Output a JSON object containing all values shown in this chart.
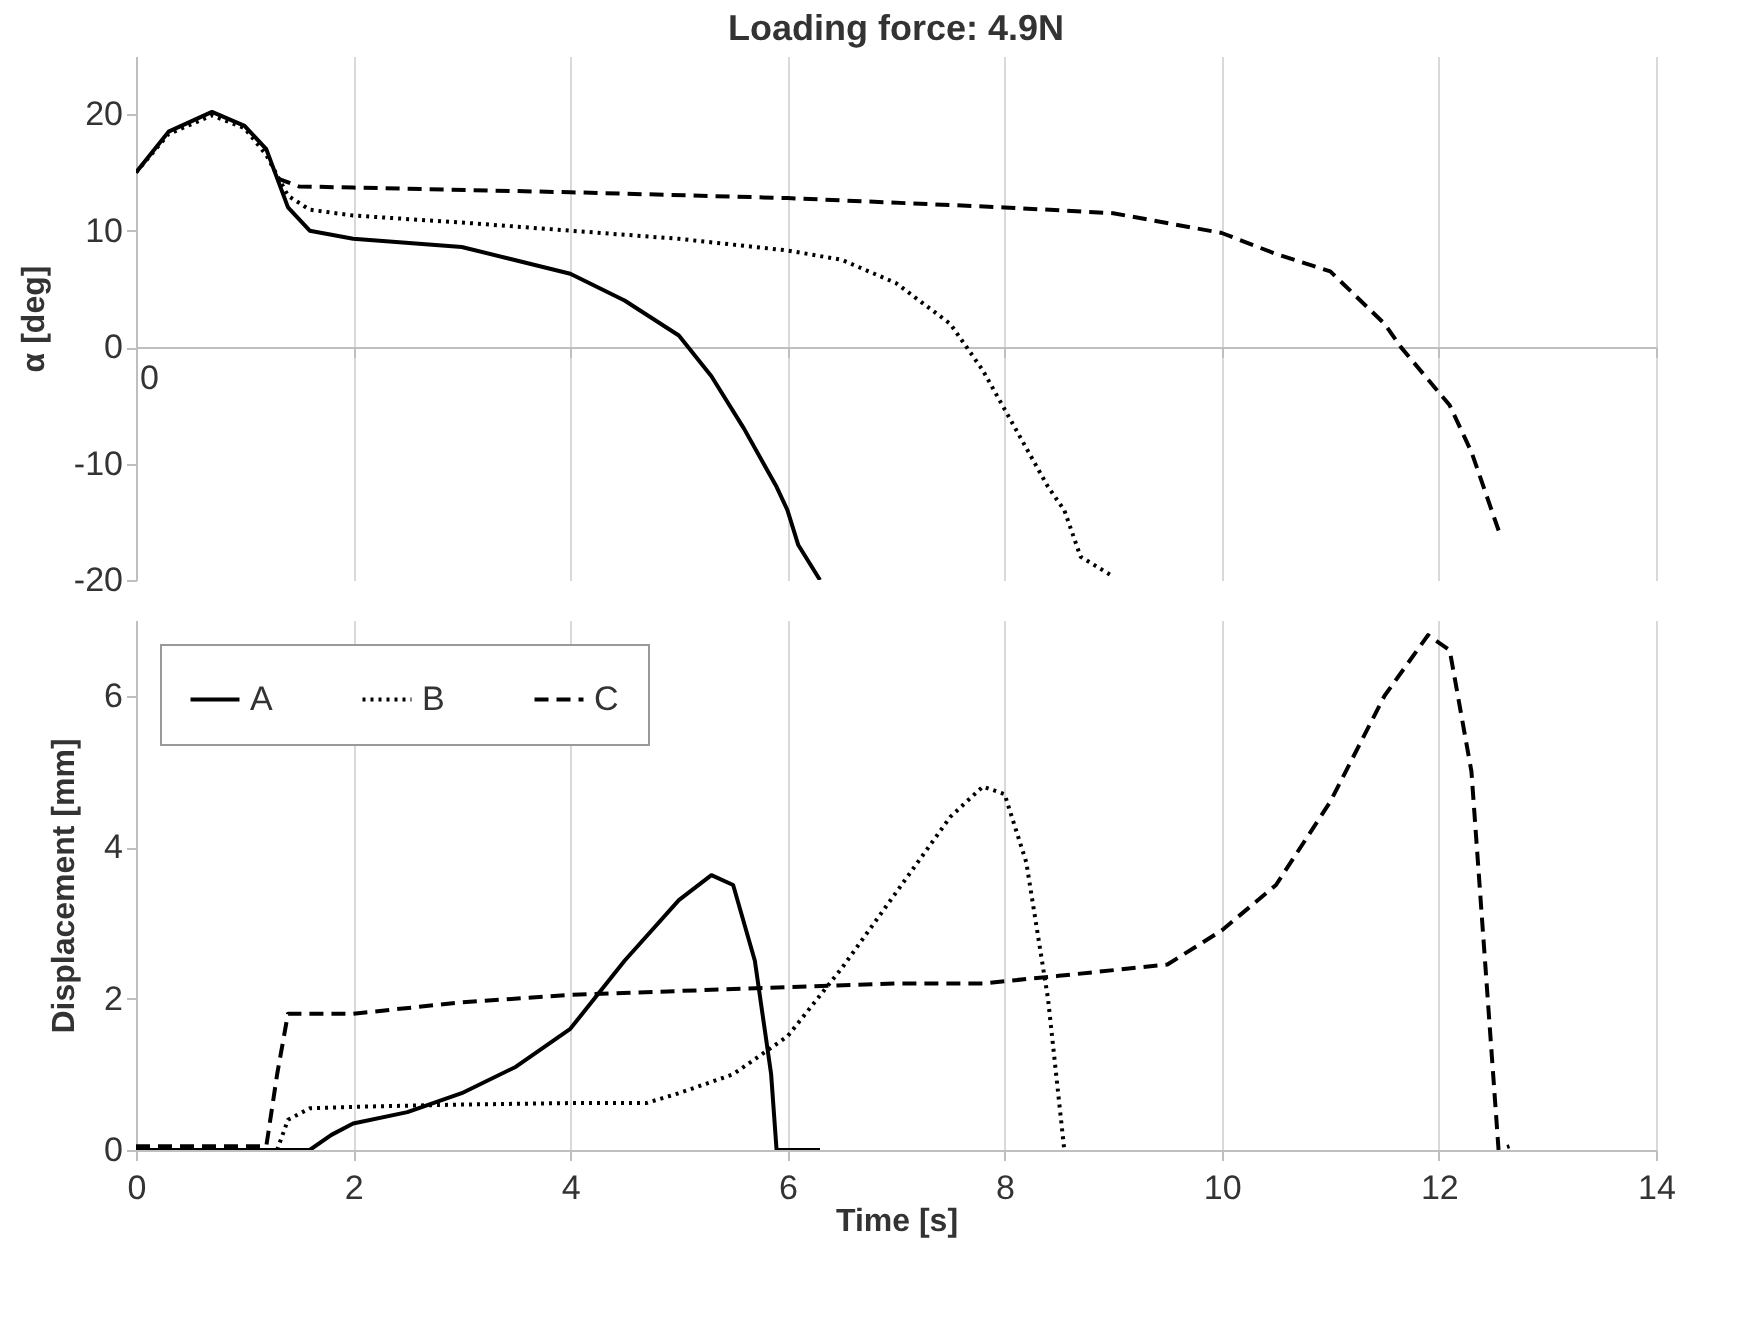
{
  "chart_data": [
    {
      "type": "line",
      "title": "Loading force: 4.9N",
      "ylabel": "α [deg]",
      "xlim": [
        0,
        14
      ],
      "xticks": [
        0,
        2,
        4,
        6,
        8,
        10,
        12,
        14
      ],
      "tick_labels": "y",
      "annotations": [
        "0"
      ],
      "ylim": [
        -20,
        25
      ],
      "yticks": [
        -20,
        -10,
        0,
        10,
        20
      ],
      "grid": "x",
      "marker": "none",
      "series": [
        {
          "color": "#000000",
          "line_style": "solid",
          "x": [
            0,
            0.3,
            0.7,
            1.0,
            1.2,
            1.4,
            1.6,
            2,
            3,
            4,
            4.5,
            5,
            5.3,
            5.6,
            5.9,
            6.0,
            6.1,
            6.3
          ],
          "values": [
            15,
            18.5,
            20.2,
            19,
            17,
            12,
            10,
            9.3,
            8.6,
            6.3,
            4,
            1,
            -2.5,
            -7,
            -12,
            -14,
            -17,
            -20
          ]
        },
        {
          "color": "#000000",
          "line_style": "dotted",
          "x": [
            0,
            0.3,
            0.7,
            1.0,
            1.2,
            1.4,
            1.6,
            2,
            3,
            4,
            5,
            6,
            6.5,
            7,
            7.5,
            7.8,
            8.1,
            8.4,
            8.55,
            8.7,
            9
          ],
          "values": [
            15,
            18.3,
            19.9,
            18.8,
            16.5,
            13,
            11.8,
            11.3,
            10.7,
            10,
            9.3,
            8.3,
            7.5,
            5.5,
            2,
            -2,
            -7,
            -12,
            -14,
            -18,
            -19.7
          ]
        },
        {
          "color": "#000000",
          "line_style": "dashed",
          "x": [
            1.3,
            1.5,
            2,
            4,
            6,
            8,
            9,
            10,
            10.5,
            11,
            11.5,
            11.65,
            12.1,
            12.3,
            12.56
          ],
          "values": [
            14.5,
            13.8,
            13.7,
            13.3,
            12.8,
            12,
            11.5,
            9.8,
            8,
            6.5,
            2,
            0,
            -5,
            -9,
            -16
          ]
        }
      ]
    },
    {
      "type": "line",
      "xlabel": "Time [s]",
      "ylabel": "Displacement [mm]",
      "xlim": [
        0,
        14
      ],
      "xticks": [
        0,
        2,
        4,
        6,
        8,
        10,
        12,
        14
      ],
      "ylim": [
        0,
        7
      ],
      "yticks": [
        0,
        2,
        4,
        6
      ],
      "grid": "x",
      "legend": "top left",
      "marker": "none",
      "series": [
        {
          "name": "A",
          "color": "#000000",
          "line_style": "solid",
          "x": [
            0,
            1.6,
            1.8,
            2,
            2.5,
            3,
            3.5,
            4,
            4.5,
            5,
            5.3,
            5.5,
            5.7,
            5.85,
            5.9,
            6.3
          ],
          "values": [
            0,
            0,
            0.2,
            0.35,
            0.5,
            0.75,
            1.1,
            1.6,
            2.5,
            3.3,
            3.63,
            3.5,
            2.5,
            1,
            0,
            0
          ]
        },
        {
          "name": "B",
          "color": "#000000",
          "line_style": "dotted",
          "x": [
            1.3,
            1.4,
            1.6,
            2,
            3,
            4,
            4.7,
            5,
            5.5,
            6,
            6.5,
            7,
            7.5,
            7.8,
            8,
            8.2,
            8.4,
            8.55
          ],
          "values": [
            0,
            0.4,
            0.55,
            0.57,
            0.6,
            0.62,
            0.62,
            0.75,
            1,
            1.5,
            2.4,
            3.4,
            4.4,
            4.8,
            4.7,
            3.8,
            2,
            0
          ]
        },
        {
          "name": "C",
          "color": "#000000",
          "line_style": "dashed",
          "x": [
            0,
            1.2,
            1.3,
            1.4,
            2,
            3,
            4,
            5,
            6,
            7,
            7.8,
            8.5,
            9.5,
            10,
            10.5,
            11,
            11.5,
            11.9,
            12.1,
            12.3,
            12.45,
            12.55,
            12.65
          ],
          "values": [
            0.05,
            0.05,
            1,
            1.8,
            1.8,
            1.95,
            2.05,
            2.1,
            2.15,
            2.2,
            2.2,
            2.3,
            2.45,
            2.9,
            3.5,
            4.6,
            6,
            6.8,
            6.6,
            5,
            2,
            0,
            0.05
          ]
        }
      ]
    }
  ]
}
